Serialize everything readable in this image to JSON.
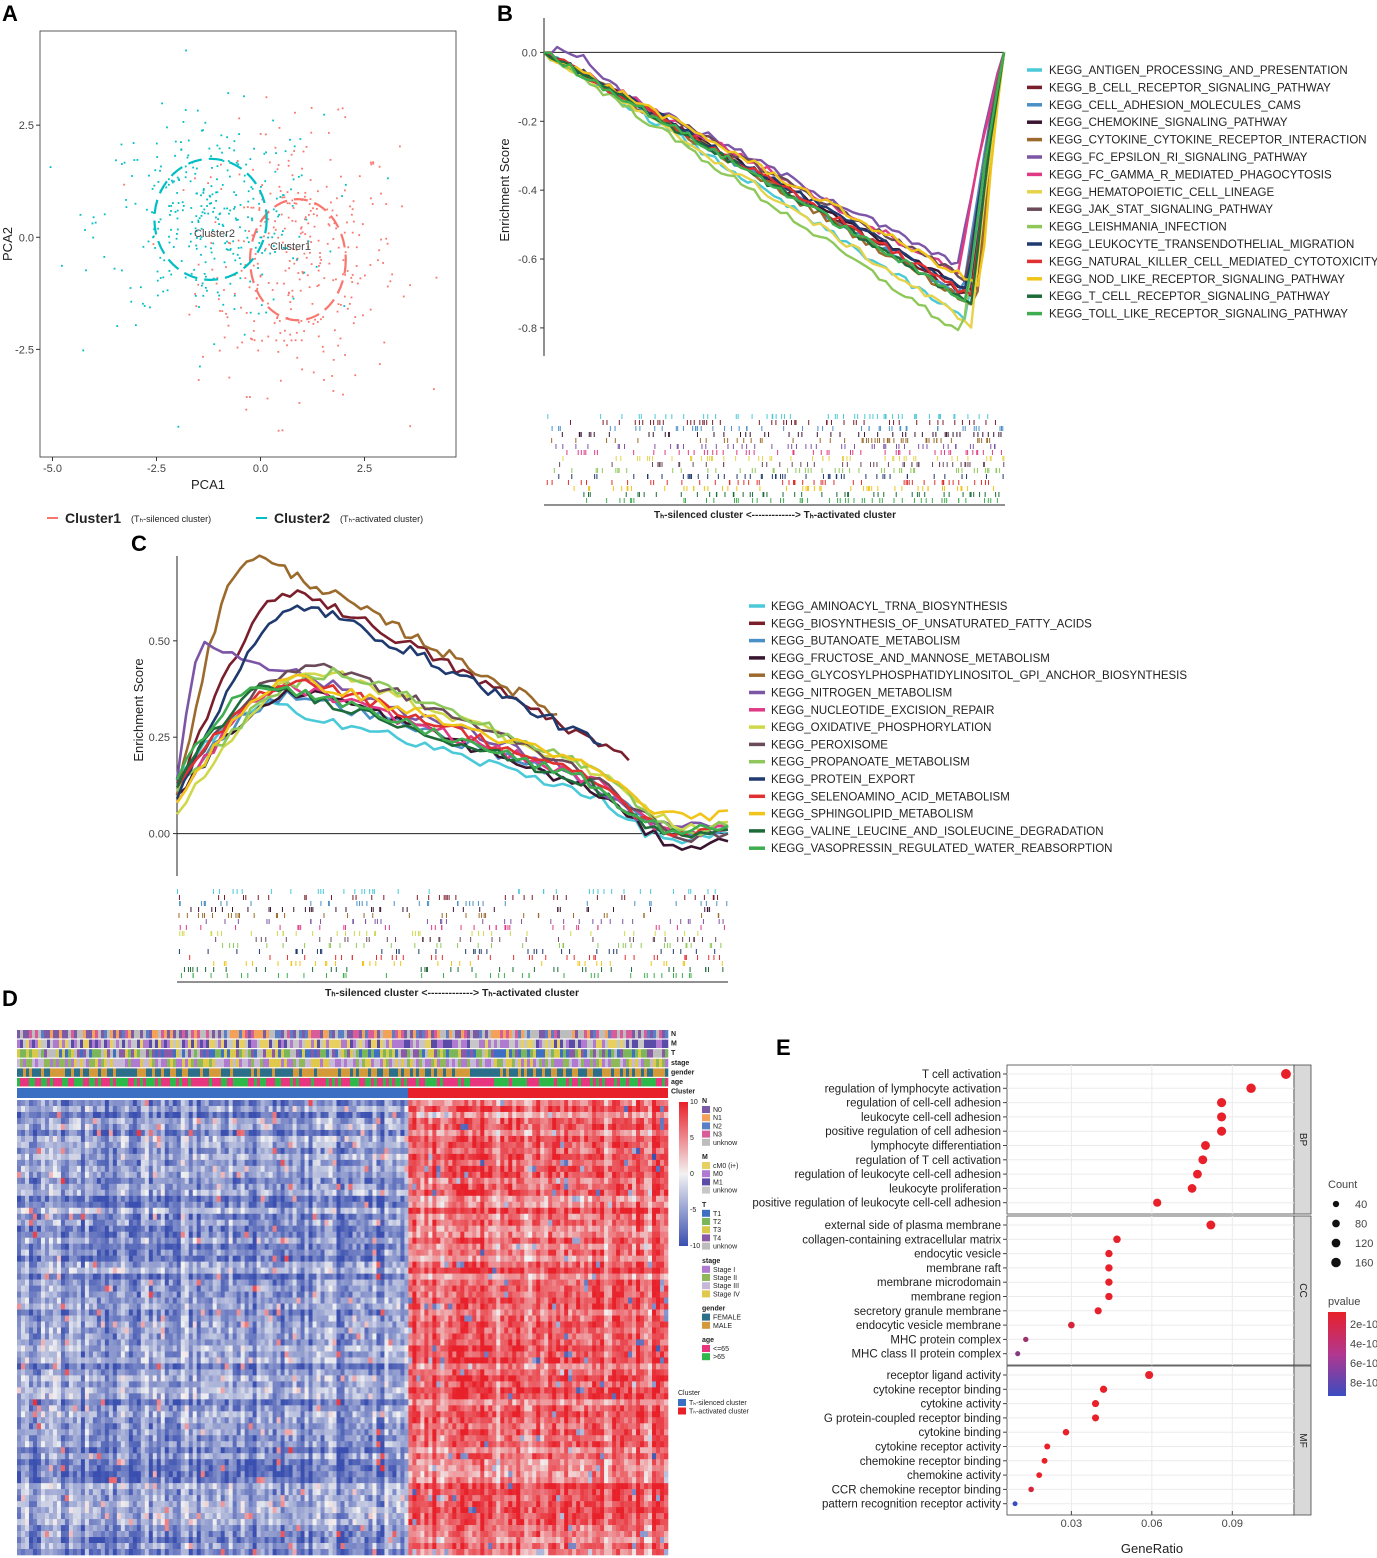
{
  "panel_labels": [
    "A",
    "B",
    "C",
    "D",
    "E"
  ],
  "colors": {
    "cluster1": "#F8766D",
    "cluster2": "#00BFC4",
    "heat_low": "#3a4fb0",
    "heat_mid": "#f2f2f2",
    "heat_high": "#e8202a",
    "pv_low": "#e8202a",
    "pv_high": "#3b4cc0"
  },
  "chart_data": [
    {
      "id": "A",
      "type": "scatter",
      "xlabel": "PCA1",
      "ylabel": "PCA2",
      "xlim": [
        -5.3,
        4.7
      ],
      "ylim": [
        -4.9,
        4.6
      ],
      "xticks": [
        -5.0,
        -2.5,
        0.0,
        2.5
      ],
      "xtick_labels": [
        "-5.0",
        "-2.5",
        "0.0",
        "2.5"
      ],
      "yticks": [
        2.5,
        0.0,
        -2.5
      ],
      "ytick_labels": [
        "2.5",
        "0.0",
        "-2.5"
      ],
      "clusters": [
        {
          "name": "Cluster1",
          "center": [
            0.9,
            -0.5
          ],
          "spread": [
            1.2,
            1.45
          ],
          "ellipse": [
            1.15,
            1.35
          ],
          "n": 340
        },
        {
          "name": "Cluster2",
          "center": [
            -1.2,
            0.4
          ],
          "spread": [
            1.35,
            1.15
          ],
          "ellipse": [
            1.35,
            1.35
          ],
          "n": 340
        }
      ],
      "cluster_labels": [
        "Cluster2",
        "Cluster1"
      ],
      "legend": [
        {
          "label": "Cluster1",
          "sub": "(Tₕ-silenced cluster)"
        },
        {
          "label": "Cluster2",
          "sub": "(Tₕ-activated cluster)"
        }
      ]
    },
    {
      "id": "B",
      "type": "line",
      "ylabel": "Enrichment Score",
      "ylim": [
        -0.87,
        0.1
      ],
      "yticks": [
        0.0,
        -0.2,
        -0.4,
        -0.6,
        -0.8
      ],
      "ytick_labels": [
        "0.0",
        "-0.2",
        "-0.4",
        "-0.6",
        "-0.8"
      ],
      "xlabel": "Tₕ-silenced cluster  <-------------> Tₕ-activated cluster",
      "series": [
        {
          "name": "KEGG_ANTIGEN_PROCESSING_AND_PRESENTATION",
          "color": "#4ac9d8",
          "min": -0.78,
          "peak": 0.92,
          "start": 0.0
        },
        {
          "name": "KEGG_B_CELL_RECEPTOR_SIGNALING_PATHWAY",
          "color": "#7b1e2c",
          "min": -0.72,
          "peak": 0.94,
          "start": 0.0
        },
        {
          "name": "KEGG_CELL_ADHESION_MOLECULES_CAMS",
          "color": "#4a8fc6",
          "min": -0.71,
          "peak": 0.91,
          "start": 0.0
        },
        {
          "name": "KEGG_CHEMOKINE_SIGNALING_PATHWAY",
          "color": "#3a1530",
          "min": -0.7,
          "peak": 0.93,
          "start": 0.0
        },
        {
          "name": "KEGG_CYTOKINE_CYTOKINE_RECEPTOR_INTERACTION",
          "color": "#9b6a2c",
          "min": -0.74,
          "peak": 0.94,
          "start": 0.0
        },
        {
          "name": "KEGG_FC_EPSILON_RI_SIGNALING_PATHWAY",
          "color": "#7c55a6",
          "min": -0.62,
          "peak": 0.9,
          "start": 0.05
        },
        {
          "name": "KEGG_FC_GAMMA_R_MEDIATED_PHAGOCYTOSIS",
          "color": "#e03a86",
          "min": -0.64,
          "peak": 0.9,
          "start": 0.0
        },
        {
          "name": "KEGG_HEMATOPOIETIC_CELL_LINEAGE",
          "color": "#e7d34a",
          "min": -0.79,
          "peak": 0.93,
          "start": 0.0
        },
        {
          "name": "KEGG_JAK_STAT_SIGNALING_PATHWAY",
          "color": "#6b4a5a",
          "min": -0.66,
          "peak": 0.92,
          "start": 0.0
        },
        {
          "name": "KEGG_LEISHMANIA_INFECTION",
          "color": "#8fc85a",
          "min": -0.82,
          "peak": 0.91,
          "start": 0.0
        },
        {
          "name": "KEGG_LEUKOCYTE_TRANSENDOTHELIAL_MIGRATION",
          "color": "#1f3a6e",
          "min": -0.69,
          "peak": 0.92,
          "start": 0.0
        },
        {
          "name": "KEGG_NATURAL_KILLER_CELL_MEDIATED_CYTOTOXICITY",
          "color": "#e03030",
          "min": -0.71,
          "peak": 0.93,
          "start": 0.0
        },
        {
          "name": "KEGG_NOD_LIKE_RECEPTOR_SIGNALING_PATHWAY",
          "color": "#f0c419",
          "min": -0.68,
          "peak": 0.95,
          "start": 0.0
        },
        {
          "name": "KEGG_T_CELL_RECEPTOR_SIGNALING_PATHWAY",
          "color": "#1e6b3a",
          "min": -0.73,
          "peak": 0.93,
          "start": 0.0
        },
        {
          "name": "KEGG_TOLL_LIKE_RECEPTOR_SIGNALING_PATHWAY",
          "color": "#3fae4f",
          "min": -0.72,
          "peak": 0.92,
          "start": 0.0
        }
      ]
    },
    {
      "id": "C",
      "type": "line",
      "ylabel": "Enrichment Score",
      "ylim": [
        -0.11,
        0.72
      ],
      "yticks": [
        0.5,
        0.25,
        0.0
      ],
      "ytick_labels": [
        "0.50",
        "0.25",
        "0.00"
      ],
      "xlabel": "Tₕ-silenced cluster  <-------------> Tₕ-activated cluster",
      "series": [
        {
          "name": "KEGG_AMINOACYL_TRNA_BIOSYNTHESIS",
          "color": "#4ac9d8",
          "max": 0.33,
          "peak": 0.18,
          "end": 0.0,
          "start": 0.15,
          "stop": 1.0
        },
        {
          "name": "KEGG_BIOSYNTHESIS_OF_UNSATURATED_FATTY_ACIDS",
          "color": "#7b1e2c",
          "max": 0.63,
          "peak": 0.22,
          "end": 0.19,
          "start": 0.1,
          "stop": 0.82
        },
        {
          "name": "KEGG_BUTANOATE_METABOLISM",
          "color": "#4a8fc6",
          "max": 0.36,
          "peak": 0.22,
          "end": 0.02,
          "start": 0.12,
          "stop": 1.0
        },
        {
          "name": "KEGG_FRUCTOSE_AND_MANNOSE_METABOLISM",
          "color": "#3a1530",
          "max": 0.37,
          "peak": 0.24,
          "end": -0.02,
          "start": 0.1,
          "stop": 1.0
        },
        {
          "name": "KEGG_GLYCOSYLPHOSPHATIDYLINOSITOL_GPI_ANCHOR_BIOSYNTHESIS",
          "color": "#9b6a2c",
          "max": 0.72,
          "peak": 0.14,
          "end": 0.31,
          "start": 0.1,
          "stop": 0.69
        },
        {
          "name": "KEGG_NITROGEN_METABOLISM",
          "color": "#7c55a6",
          "max": 0.49,
          "peak": 0.05,
          "end": 0.02,
          "start": 0.14,
          "stop": 1.0
        },
        {
          "name": "KEGG_NUCLEOTIDE_EXCISION_REPAIR",
          "color": "#e03a86",
          "max": 0.38,
          "peak": 0.21,
          "end": 0.02,
          "start": 0.08,
          "stop": 1.0
        },
        {
          "name": "KEGG_OXIDATIVE_PHOSPHORYLATION",
          "color": "#cfd84a",
          "max": 0.42,
          "peak": 0.27,
          "end": 0.03,
          "start": 0.05,
          "stop": 1.0
        },
        {
          "name": "KEGG_PEROXISOME",
          "color": "#6b4a5a",
          "max": 0.44,
          "peak": 0.26,
          "end": 0.0,
          "start": 0.13,
          "stop": 1.0
        },
        {
          "name": "KEGG_PROPANOATE_METABOLISM",
          "color": "#8fc85a",
          "max": 0.42,
          "peak": 0.3,
          "end": 0.02,
          "start": 0.11,
          "stop": 1.0
        },
        {
          "name": "KEGG_PROTEIN_EXPORT",
          "color": "#1f3a6e",
          "max": 0.59,
          "peak": 0.24,
          "end": 0.23,
          "start": 0.09,
          "stop": 0.77
        },
        {
          "name": "KEGG_SELENOAMINO_ACID_METABOLISM",
          "color": "#e03030",
          "max": 0.4,
          "peak": 0.23,
          "end": 0.01,
          "start": 0.12,
          "stop": 1.0
        },
        {
          "name": "KEGG_SPHINGOLIPID_METABOLISM",
          "color": "#f0c419",
          "max": 0.4,
          "peak": 0.22,
          "end": 0.06,
          "start": 0.08,
          "stop": 1.0
        },
        {
          "name": "KEGG_VALINE_LEUCINE_AND_ISOLEUCINE_DEGRADATION",
          "color": "#1e6b3a",
          "max": 0.38,
          "peak": 0.18,
          "end": 0.01,
          "start": 0.12,
          "stop": 1.0
        },
        {
          "name": "KEGG_VASOPRESSIN_REGULATED_WATER_REABSORPTION",
          "color": "#3fae4f",
          "max": 0.39,
          "peak": 0.16,
          "end": 0.02,
          "start": 0.14,
          "stop": 1.0
        }
      ]
    },
    {
      "id": "D",
      "type": "heatmap",
      "annotation_tracks": [
        "N",
        "M",
        "T",
        "stage",
        "gender",
        "age",
        "Cluster"
      ],
      "scale_ticks": [
        "10",
        "5",
        "0",
        "-5",
        "-10"
      ],
      "scale_min": -10,
      "scale_max": 10,
      "legends": [
        {
          "title": "N",
          "items": [
            {
              "label": "N0",
              "color": "#7b5aa6"
            },
            {
              "label": "N1",
              "color": "#f4a259"
            },
            {
              "label": "N2",
              "color": "#5b7fc7"
            },
            {
              "label": "N3",
              "color": "#d95c9a"
            },
            {
              "label": "unknow",
              "color": "#bdbdbd"
            }
          ]
        },
        {
          "title": "M",
          "items": [
            {
              "label": "cM0 (i+)",
              "color": "#e8d060"
            },
            {
              "label": "M0",
              "color": "#b07ad0"
            },
            {
              "label": "M1",
              "color": "#5b4ba8"
            },
            {
              "label": "unknow",
              "color": "#c7c7c7"
            }
          ]
        },
        {
          "title": "T",
          "items": [
            {
              "label": "T1",
              "color": "#3f6fc2"
            },
            {
              "label": "T2",
              "color": "#7cb65a"
            },
            {
              "label": "T3",
              "color": "#d8c94a"
            },
            {
              "label": "T4",
              "color": "#8a5aa8"
            },
            {
              "label": "unknow",
              "color": "#bdbdbd"
            }
          ]
        },
        {
          "title": "stage",
          "items": [
            {
              "label": "Stage I",
              "color": "#b07ad0"
            },
            {
              "label": "Stage II",
              "color": "#8fb85a"
            },
            {
              "label": "Stage III",
              "color": "#c8b8d8"
            },
            {
              "label": "Stage IV",
              "color": "#e0c84a"
            }
          ]
        },
        {
          "title": "gender",
          "items": [
            {
              "label": "FEMALE",
              "color": "#2c6f8a"
            },
            {
              "label": "MALE",
              "color": "#d49a3a"
            }
          ]
        },
        {
          "title": "age",
          "items": [
            {
              "label": "<=65",
              "color": "#e8357f"
            },
            {
              "label": ">65",
              "color": "#2eb84a"
            }
          ]
        }
      ],
      "cluster_legend": {
        "title": "Cluster",
        "items": [
          {
            "label": "Tₕ-silenced cluster",
            "color": "#3a6fc4"
          },
          {
            "label": "Tₕ-activated cluster",
            "color": "#e8202a"
          }
        ]
      }
    },
    {
      "id": "E",
      "type": "scatter",
      "xlabel": "GeneRatio",
      "xlim": [
        0.006,
        0.113
      ],
      "xticks": [
        0.03,
        0.06,
        0.09
      ],
      "xtick_labels": [
        "0.03",
        "0.06",
        "0.09"
      ],
      "facets": [
        {
          "label": "BP",
          "terms": [
            {
              "term": "T cell activation",
              "ratio": 0.11,
              "count": 175,
              "pvalue": 1e-12
            },
            {
              "term": "regulation of lymphocyte activation",
              "ratio": 0.097,
              "count": 155,
              "pvalue": 1e-12
            },
            {
              "term": "regulation of cell-cell adhesion",
              "ratio": 0.086,
              "count": 138,
              "pvalue": 1e-12
            },
            {
              "term": "leukocyte cell-cell adhesion",
              "ratio": 0.086,
              "count": 137,
              "pvalue": 1e-12
            },
            {
              "term": "positive regulation of cell adhesion",
              "ratio": 0.086,
              "count": 137,
              "pvalue": 1e-12
            },
            {
              "term": "lymphocyte differentiation",
              "ratio": 0.08,
              "count": 128,
              "pvalue": 1e-12
            },
            {
              "term": "regulation of T cell activation",
              "ratio": 0.079,
              "count": 126,
              "pvalue": 1e-12
            },
            {
              "term": "regulation of leukocyte cell-cell adhesion",
              "ratio": 0.077,
              "count": 123,
              "pvalue": 1e-12
            },
            {
              "term": "leukocyte proliferation",
              "ratio": 0.075,
              "count": 120,
              "pvalue": 1e-12
            },
            {
              "term": "positive regulation of leukocyte cell-cell adhesion",
              "ratio": 0.062,
              "count": 99,
              "pvalue": 1e-12
            }
          ]
        },
        {
          "label": "CC",
          "terms": [
            {
              "term": "external side of plasma membrane",
              "ratio": 0.082,
              "count": 130,
              "pvalue": 1e-12
            },
            {
              "term": "collagen-containing extracellular matrix",
              "ratio": 0.047,
              "count": 75,
              "pvalue": 1e-12
            },
            {
              "term": "endocytic vesicle",
              "ratio": 0.044,
              "count": 70,
              "pvalue": 1e-12
            },
            {
              "term": "membrane raft",
              "ratio": 0.044,
              "count": 70,
              "pvalue": 1e-12
            },
            {
              "term": "membrane microdomain",
              "ratio": 0.044,
              "count": 70,
              "pvalue": 1e-12
            },
            {
              "term": "membrane region",
              "ratio": 0.044,
              "count": 70,
              "pvalue": 1e-12
            },
            {
              "term": "secretory granule membrane",
              "ratio": 0.04,
              "count": 64,
              "pvalue": 1e-12
            },
            {
              "term": "endocytic vesicle membrane",
              "ratio": 0.03,
              "count": 48,
              "pvalue": 2e-12
            },
            {
              "term": "MHC protein complex",
              "ratio": 0.013,
              "count": 21,
              "pvalue": 2e-11
            },
            {
              "term": "MHC class II protein complex",
              "ratio": 0.01,
              "count": 16,
              "pvalue": 5e-11
            }
          ]
        },
        {
          "label": "MF",
          "terms": [
            {
              "term": "receptor ligand activity",
              "ratio": 0.059,
              "count": 94,
              "pvalue": 1e-12
            },
            {
              "term": "cytokine receptor binding",
              "ratio": 0.042,
              "count": 67,
              "pvalue": 1e-12
            },
            {
              "term": "cytokine activity",
              "ratio": 0.039,
              "count": 62,
              "pvalue": 1e-12
            },
            {
              "term": "G protein-coupled receptor binding",
              "ratio": 0.039,
              "count": 62,
              "pvalue": 1e-12
            },
            {
              "term": "cytokine binding",
              "ratio": 0.028,
              "count": 45,
              "pvalue": 1e-12
            },
            {
              "term": "cytokine receptor activity",
              "ratio": 0.021,
              "count": 34,
              "pvalue": 1e-12
            },
            {
              "term": "chemokine receptor binding",
              "ratio": 0.02,
              "count": 32,
              "pvalue": 1e-12
            },
            {
              "term": "chemokine activity",
              "ratio": 0.018,
              "count": 29,
              "pvalue": 1e-12
            },
            {
              "term": "CCR chemokine receptor binding",
              "ratio": 0.015,
              "count": 24,
              "pvalue": 2e-12
            },
            {
              "term": "pattern recognition receptor activity",
              "ratio": 0.009,
              "count": 14,
              "pvalue": 9e-10
            }
          ]
        }
      ],
      "size_legend": {
        "title": "Count",
        "values": [
          40,
          80,
          120,
          160
        ]
      },
      "color_legend": {
        "title": "pvalue",
        "ticks": [
          "2e-10",
          "4e-10",
          "6e-10",
          "8e-10"
        ],
        "min": 1e-12,
        "max": 9e-10
      }
    }
  ]
}
